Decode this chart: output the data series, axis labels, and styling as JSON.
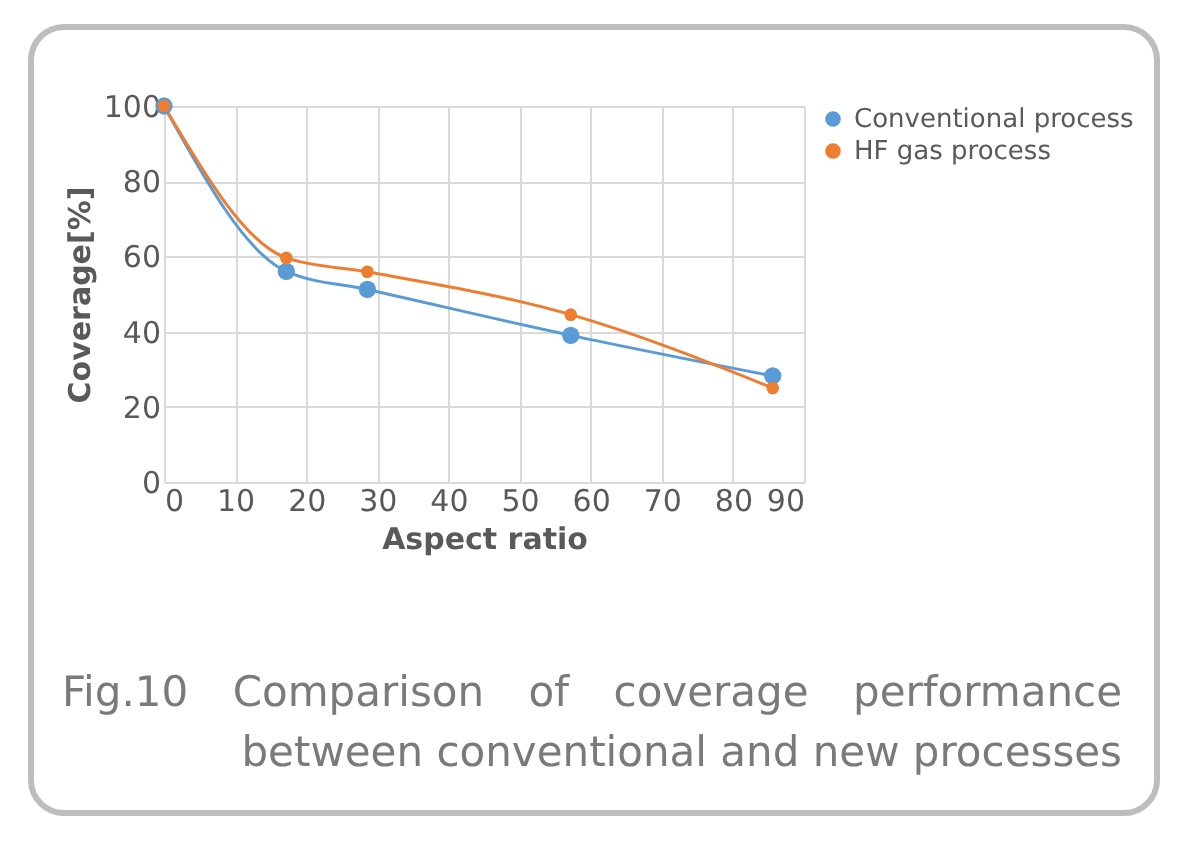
{
  "chart_data": {
    "type": "line",
    "title": "Fig.10  Comparison of coverage performance between conventional and new processes",
    "xlabel": "Aspect ratio",
    "ylabel": "Coverage[%]",
    "x": [
      0,
      17.2,
      28.6,
      57.2,
      85.6
    ],
    "series": [
      {
        "name": "Conventional process",
        "color": "#5b9bd5",
        "values": [
          100,
          56.0,
          51.2,
          39.0,
          28.2
        ]
      },
      {
        "name": "HF gas process",
        "color": "#ed7d31",
        "values": [
          100,
          59.6,
          55.9,
          44.5,
          25.0
        ]
      }
    ],
    "xlim": [
      0,
      90
    ],
    "xticks": [
      0,
      10,
      20,
      30,
      40,
      50,
      60,
      70,
      80,
      90
    ],
    "ylim": [
      0,
      100
    ],
    "yticks": [
      0,
      20,
      40,
      60,
      80,
      100
    ],
    "grid": true,
    "legend": "right",
    "marker": "circle",
    "line_style": "solid"
  }
}
